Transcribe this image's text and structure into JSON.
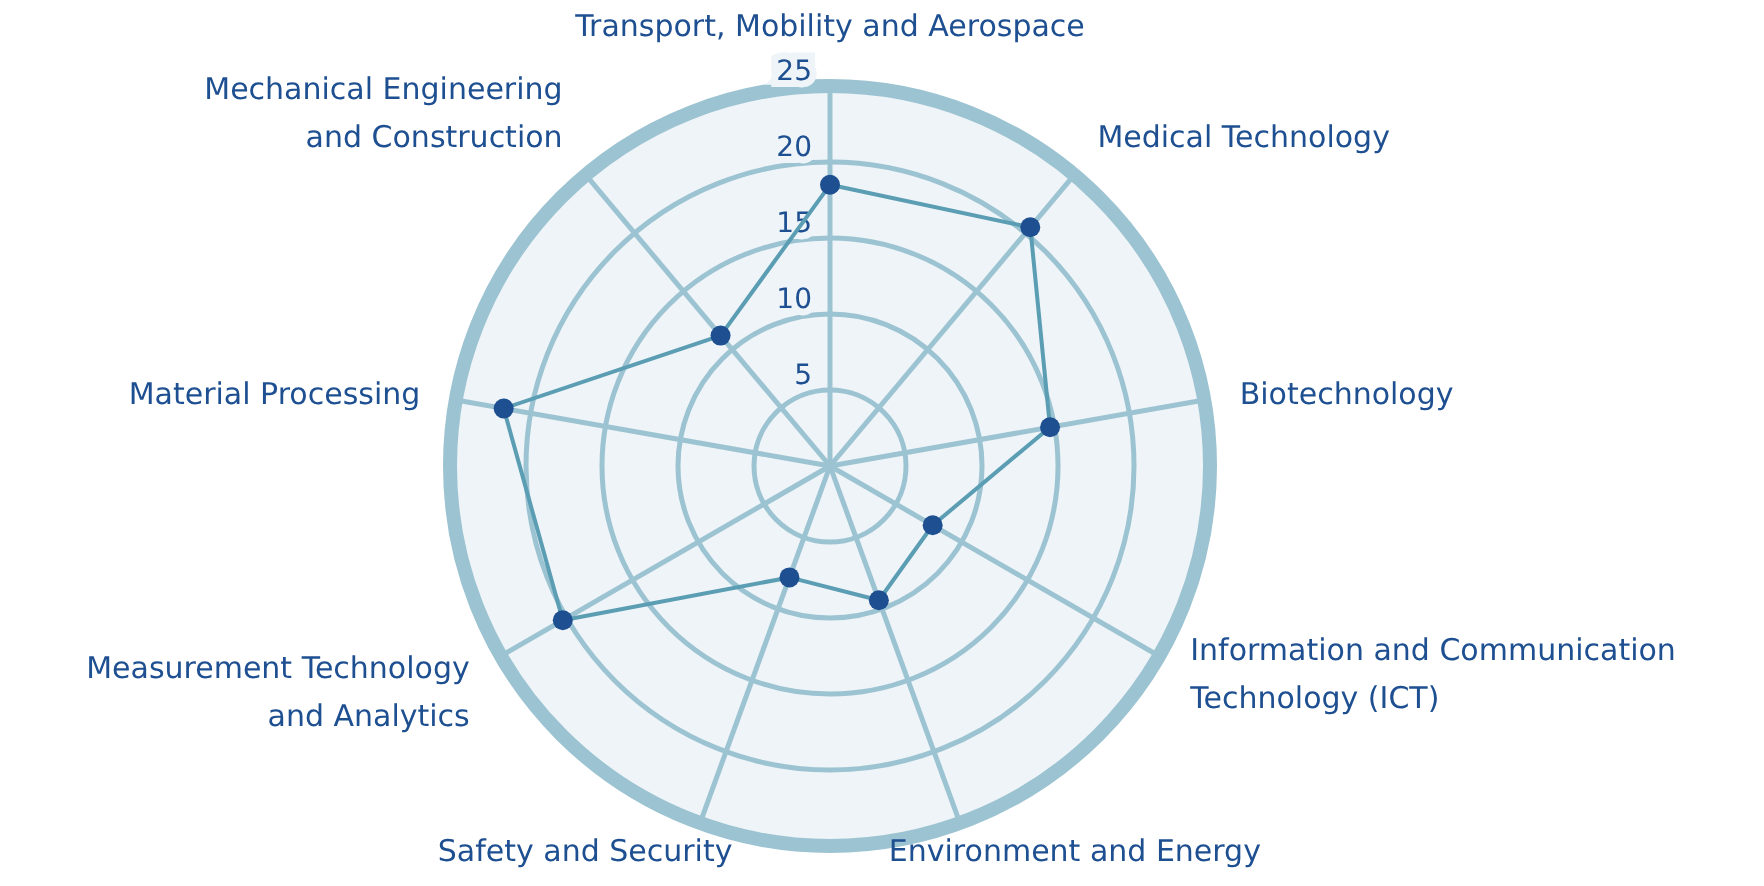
{
  "chart_data": {
    "type": "radar",
    "categories": [
      "Transport, Mobility and Aerospace",
      "Medical Technology",
      "Biotechnology",
      "Information and Communication Technology (ICT)",
      "Environment and Energy",
      "Safety and Security",
      "Measurement Technology and Analytics",
      "Material Processing",
      "Mechanical Engineering and Construction"
    ],
    "series": [
      {
        "color": "#5b9db3",
        "values": [
          18.5,
          20.5,
          14.7,
          7.8,
          9.4,
          7.8,
          20.3,
          21.8,
          11.2
        ]
      }
    ],
    "ylim": [
      0,
      25
    ],
    "yticks": [
      5,
      10,
      15,
      20,
      25
    ],
    "marker": "circle",
    "grid": true
  }
}
